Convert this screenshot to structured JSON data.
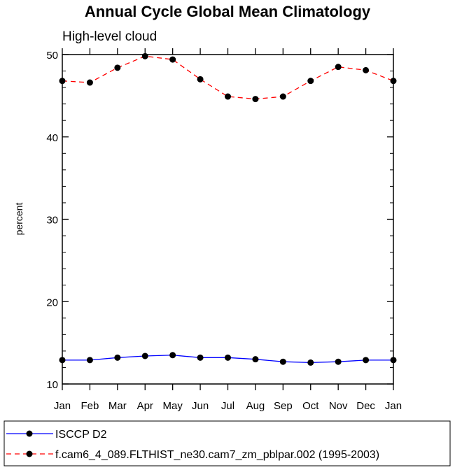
{
  "chart_data": {
    "type": "line",
    "title": "Annual Cycle Global Mean Climatology",
    "subtitle": "High-level cloud",
    "ylabel": "percent",
    "xlabel": "",
    "categories": [
      "Jan",
      "Feb",
      "Mar",
      "Apr",
      "May",
      "Jun",
      "Jul",
      "Aug",
      "Sep",
      "Oct",
      "Nov",
      "Dec",
      "Jan"
    ],
    "ylim": [
      10,
      50
    ],
    "yticks": [
      10,
      20,
      30,
      40,
      50
    ],
    "y_minor_step": 2,
    "grid": false,
    "legend_placement": "bottom",
    "series": [
      {
        "name": "ISCCP D2",
        "color": "#0000ff",
        "dash": "solid",
        "marker": "circle",
        "values": [
          12.9,
          12.9,
          13.2,
          13.4,
          13.5,
          13.2,
          13.2,
          13.0,
          12.7,
          12.6,
          12.7,
          12.9,
          12.9
        ]
      },
      {
        "name": "f.cam6_4_089.FLTHIST_ne30.cam7_zm_pblpar.002 (1995-2003)",
        "color": "#ff0000",
        "dash": "dashed",
        "marker": "circle",
        "values": [
          46.8,
          46.6,
          48.4,
          49.8,
          49.4,
          47.0,
          44.9,
          44.6,
          44.9,
          46.8,
          48.5,
          48.1,
          46.8
        ]
      }
    ]
  }
}
